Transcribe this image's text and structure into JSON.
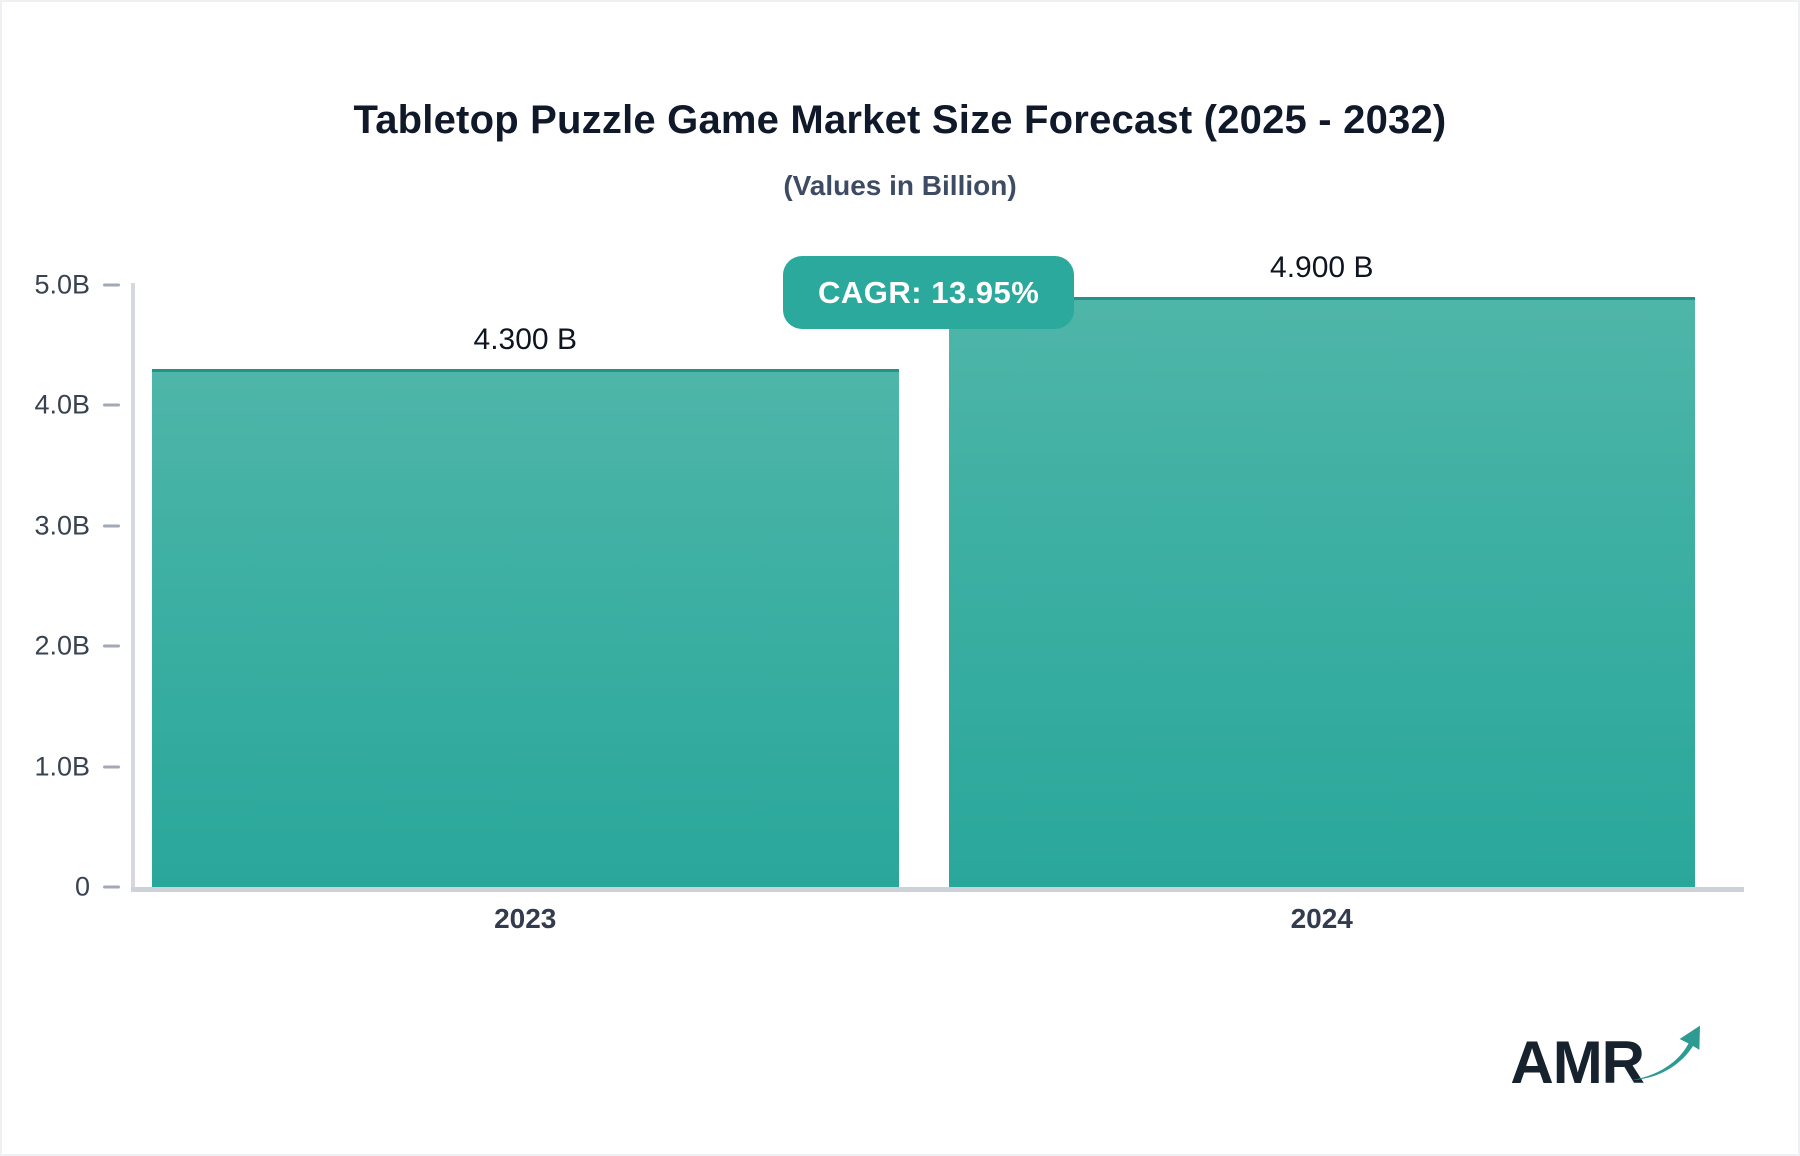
{
  "title": "Tabletop Puzzle Game Market Size Forecast (2025 - 2032)",
  "subtitle": "(Values in Billion)",
  "badge": {
    "label": "CAGR: 13.95%"
  },
  "logo": {
    "text": "AMR"
  },
  "colors": {
    "bar_gradient_top": "#4FB5A9",
    "bar_gradient_bottom": "#2AA79B",
    "bar_top_edge": "#21948A",
    "badge_background": "#2BA99D",
    "axis_line": "#D5D9DF",
    "baseline": "#CDD2D8",
    "tick_dash": "#A2A9B4",
    "title_text": "#10192A",
    "subtitle_text": "#3E4C63",
    "axis_label_text": "#394250",
    "category_label_text": "#333C4E",
    "value_label_text": "#0E1420",
    "logo_text": "#16222E",
    "logo_arrow": "#2E9B93"
  },
  "chart_data": {
    "type": "bar",
    "title": "Tabletop Puzzle Game Market Size Forecast (2025 - 2032)",
    "subtitle": "(Values in Billion)",
    "unit": "Billion",
    "cagr": "13.95%",
    "categories": [
      "2023",
      "2024"
    ],
    "values": [
      4.3,
      4.9
    ],
    "value_labels": [
      "4.300 B",
      "4.900 B"
    ],
    "ylim": [
      0,
      5
    ],
    "yticks": [
      0,
      1,
      2,
      3,
      4,
      5
    ],
    "ytick_labels": [
      "0",
      "1.0B",
      "2.0B",
      "3.0B",
      "4.0B",
      "5.0B"
    ],
    "grid": false,
    "legend": false
  }
}
